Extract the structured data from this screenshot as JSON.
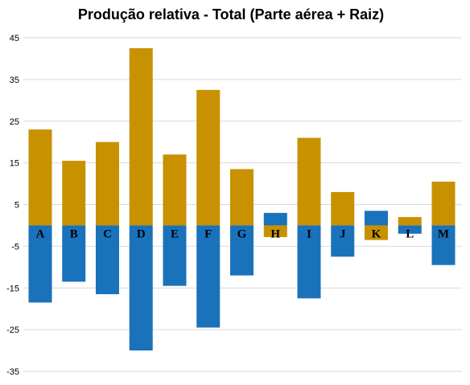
{
  "chart_data": {
    "type": "bar",
    "stacked": true,
    "title": "Produção relativa - Total (Parte aérea + Raiz)",
    "xlabel": "",
    "ylabel": "",
    "ylim": [
      -35,
      51
    ],
    "yticks": [
      45,
      35,
      25,
      15,
      5,
      -5,
      -15,
      -25,
      -35
    ],
    "grid": true,
    "categories": [
      "A",
      "B",
      "C",
      "D",
      "E",
      "F",
      "G",
      "H",
      "I",
      "J",
      "K",
      "L",
      "M"
    ],
    "series": [
      {
        "color": "#c89100",
        "values": [
          23,
          15.5,
          20,
          42.5,
          17,
          32.5,
          13.5,
          -2.8,
          21,
          8,
          -3.5,
          2,
          10.5
        ]
      },
      {
        "color": "#1a72bb",
        "values": [
          -18.5,
          -13.5,
          -16.5,
          -30,
          -14.5,
          -24.5,
          -12,
          3,
          -17.5,
          -7.5,
          3.5,
          -2,
          -9.5
        ]
      }
    ]
  }
}
